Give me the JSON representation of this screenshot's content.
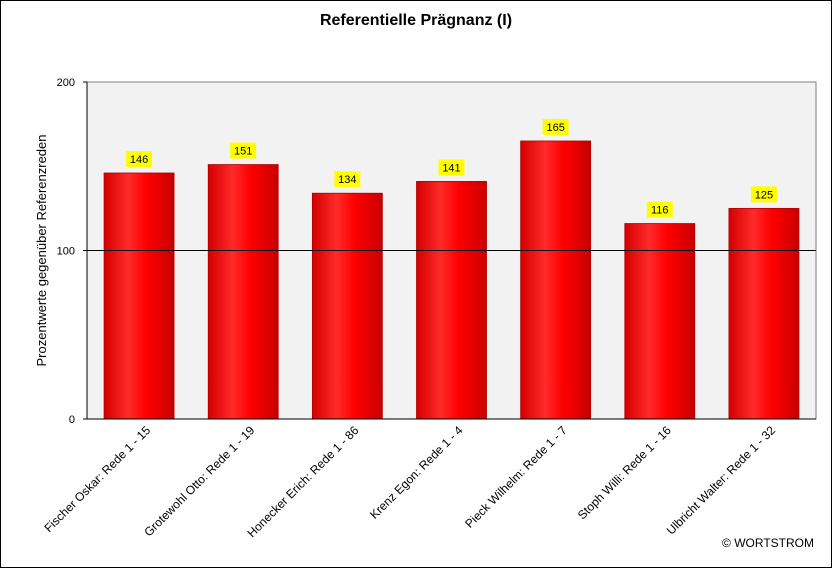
{
  "chart_data": {
    "type": "bar",
    "title": "Referentielle Prägnanz (I)",
    "ylabel": "Prozentwerte  gegenüber Referenzreden",
    "xlabel": "",
    "ylim": [
      0,
      200
    ],
    "yticks": [
      0,
      100,
      200
    ],
    "reference_line": 100,
    "grid": false,
    "categories": [
      "Fischer Oskar: Rede 1 - 15",
      "Grotewohl Otto: Rede 1 - 19",
      "Honecker Erich: Rede 1 - 86",
      "Krenz Egon: Rede 1 - 4",
      "Pieck Wilhelm: Rede 1 - 7",
      "Stoph Willi: Rede 1 - 16",
      "Ulbricht Walter: Rede 1 - 32"
    ],
    "values": [
      146,
      151,
      134,
      141,
      165,
      116,
      125
    ],
    "bar_color": "#ff0000",
    "label_bg_color": "#ffff00",
    "plot_bg_color": "#f2f2f2"
  },
  "footer": {
    "credit": "© WORTSTROM"
  }
}
